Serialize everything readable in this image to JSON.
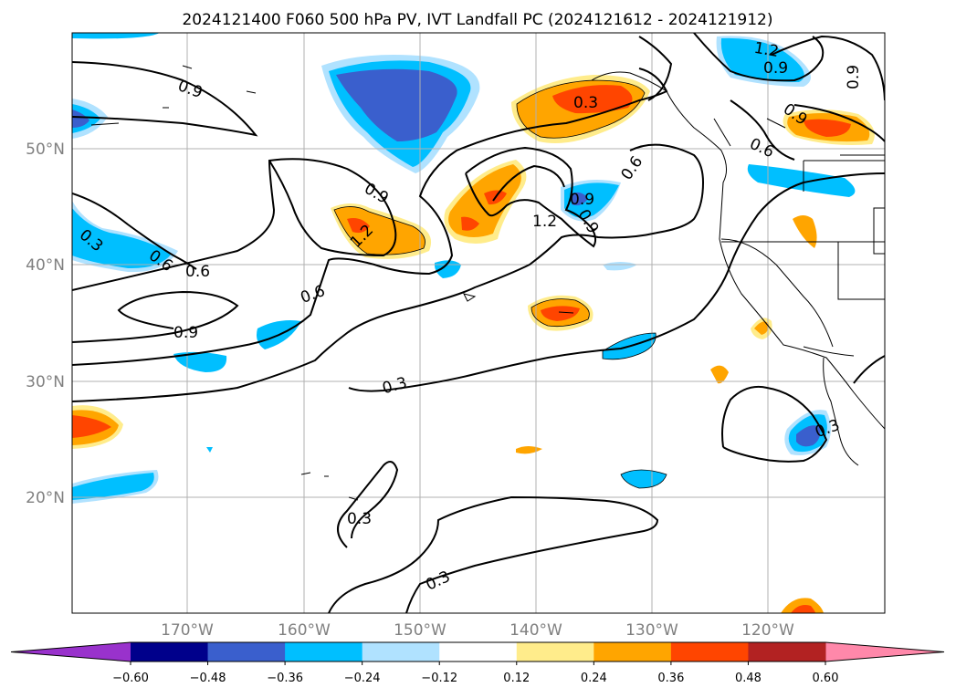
{
  "title": "2024121400 F060 500 hPa PV, IVT Landfall PC (2024121612 - 2024121912)",
  "map": {
    "lat_labels": [
      "50°N",
      "40°N",
      "30°N",
      "20°N"
    ],
    "lon_labels": [
      "170°W",
      "160°W",
      "150°W",
      "140°W",
      "130°W",
      "120°W"
    ]
  },
  "contour_labels": [
    {
      "text": "0.9"
    },
    {
      "text": "1.2"
    },
    {
      "text": "0.9"
    },
    {
      "text": "0.9"
    },
    {
      "text": "0.3"
    },
    {
      "text": "0.6"
    },
    {
      "text": "0.9"
    },
    {
      "text": "1.2"
    },
    {
      "text": "0.9"
    },
    {
      "text": "1.2"
    },
    {
      "text": "0.9"
    },
    {
      "text": "0.6"
    },
    {
      "text": "0.3"
    },
    {
      "text": "0.6"
    },
    {
      "text": "0.6"
    },
    {
      "text": "0.6"
    },
    {
      "text": "0.9"
    },
    {
      "text": "0.3"
    },
    {
      "text": "0.3"
    },
    {
      "text": "0.3"
    },
    {
      "text": "0.3"
    },
    {
      "text": "0.9"
    }
  ],
  "colorbar": {
    "ticks": [
      "−0.60",
      "−0.48",
      "−0.36",
      "−0.24",
      "−0.12",
      "0.12",
      "0.24",
      "0.36",
      "0.48",
      "0.60"
    ],
    "colors": [
      "#9932cc",
      "#00008b",
      "#3a5fcd",
      "#00bfff",
      "#b0e2ff",
      "#ffffff",
      "#ffec8b",
      "#ffa500",
      "#ff4500",
      "#b22222",
      "#ff88aa"
    ]
  },
  "palette": {
    "lightblue": "#b0e2ff",
    "cyan": "#00bfff",
    "blue": "#3a5fcd",
    "yellow": "#ffec8b",
    "orange": "#ffa500",
    "red": "#ff4500"
  }
}
